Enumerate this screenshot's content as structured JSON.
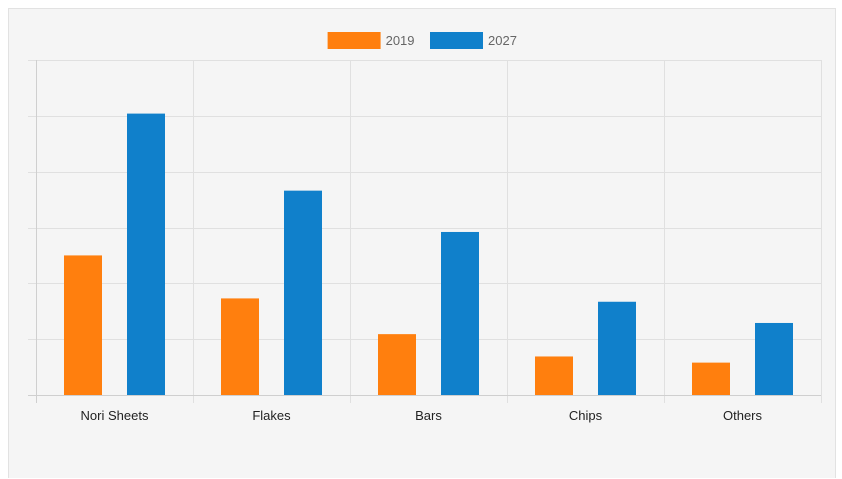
{
  "chart_data": {
    "type": "bar",
    "categories": [
      "Nori Sheets",
      "Flakes",
      "Bars",
      "Chips",
      "Others"
    ],
    "series": [
      {
        "name": "2019",
        "color": "#ff7f0e",
        "values": [
          2.5,
          1.73,
          1.09,
          0.69,
          0.58
        ]
      },
      {
        "name": "2027",
        "color": "#1080cb",
        "values": [
          5.04,
          3.66,
          2.92,
          1.67,
          1.29
        ]
      }
    ],
    "ylim": [
      0,
      6
    ],
    "y_tick_step": 1,
    "y_tick_labels_shown": false,
    "grid": true,
    "legend_position": "top-center",
    "title": "",
    "xlabel": "",
    "ylabel": ""
  }
}
